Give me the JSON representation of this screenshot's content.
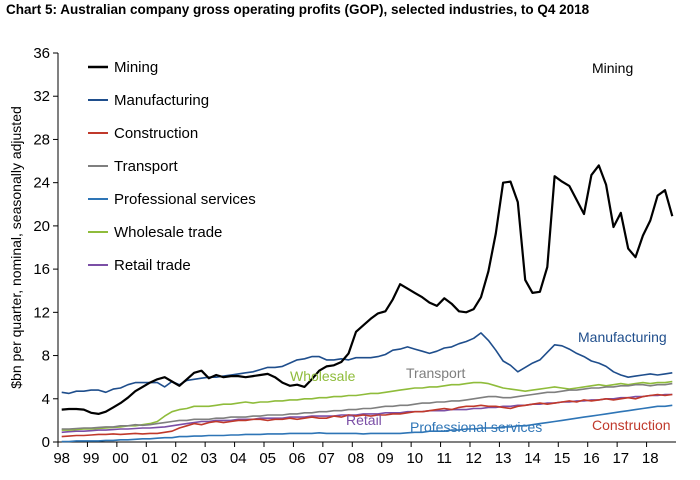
{
  "chart_data": {
    "type": "line",
    "title": "Chart 5: Australian company gross operating profits (GOP), selected industries, to Q4 2018",
    "ylabel": "$bn per quarter, nominal, seasonally adjusted",
    "xlabel": "",
    "ylim": [
      0,
      36
    ],
    "yticks": [
      0,
      4,
      8,
      12,
      16,
      20,
      24,
      28,
      32,
      36
    ],
    "x_start": 1998,
    "quarters": 84,
    "x_ticks": [
      "98",
      "99",
      "00",
      "01",
      "02",
      "03",
      "04",
      "05",
      "06",
      "07",
      "08",
      "09",
      "10",
      "11",
      "12",
      "13",
      "14",
      "15",
      "16",
      "17",
      "18"
    ],
    "series": [
      {
        "name": "Mining",
        "color": "#000000",
        "values": [
          3.0,
          3.05,
          3.05,
          3.0,
          2.7,
          2.6,
          2.8,
          3.2,
          3.6,
          4.1,
          4.7,
          5.1,
          5.5,
          5.8,
          6.0,
          5.6,
          5.2,
          5.8,
          6.4,
          6.6,
          5.9,
          6.2,
          6.0,
          6.1,
          6.1,
          6.0,
          6.1,
          6.2,
          6.3,
          6.0,
          5.5,
          5.2,
          5.3,
          5.1,
          5.8,
          6.6,
          7.0,
          7.1,
          7.4,
          8.2,
          10.2,
          10.8,
          11.4,
          11.9,
          12.1,
          13.2,
          14.6,
          14.2,
          13.8,
          13.4,
          12.9,
          12.6,
          13.3,
          12.8,
          12.1,
          12.0,
          12.3,
          13.4,
          15.8,
          19.3,
          24.0,
          24.1,
          22.2,
          15.0,
          13.8,
          13.9,
          16.2,
          24.6,
          24.1,
          23.7,
          22.4,
          21.1,
          24.7,
          25.6,
          23.8,
          19.9,
          21.2,
          17.9,
          17.1,
          19.1,
          20.5,
          22.8,
          23.3,
          20.9
        ]
      },
      {
        "name": "Manufacturing",
        "color": "#1f4e8c",
        "values": [
          4.6,
          4.5,
          4.7,
          4.7,
          4.8,
          4.8,
          4.6,
          4.9,
          5.0,
          5.3,
          5.5,
          5.5,
          5.5,
          5.5,
          5.1,
          5.6,
          5.3,
          5.7,
          5.8,
          5.9,
          6.0,
          6.0,
          6.1,
          6.2,
          6.3,
          6.4,
          6.5,
          6.7,
          6.9,
          6.9,
          7.0,
          7.3,
          7.6,
          7.7,
          7.9,
          7.9,
          7.6,
          7.6,
          7.7,
          7.6,
          7.8,
          7.8,
          7.8,
          7.9,
          8.1,
          8.5,
          8.6,
          8.8,
          8.6,
          8.4,
          8.2,
          8.4,
          8.7,
          8.8,
          9.1,
          9.3,
          9.6,
          10.1,
          9.4,
          8.5,
          7.5,
          7.1,
          6.5,
          6.9,
          7.3,
          7.6,
          8.3,
          9.0,
          8.9,
          8.6,
          8.2,
          7.9,
          7.5,
          7.3,
          7.0,
          6.5,
          6.2,
          6.0,
          6.1,
          6.2,
          6.3,
          6.2,
          6.3,
          6.4
        ]
      },
      {
        "name": "Construction",
        "color": "#c0392b",
        "values": [
          0.5,
          0.55,
          0.6,
          0.6,
          0.65,
          0.7,
          0.7,
          0.75,
          0.7,
          0.75,
          0.8,
          0.75,
          0.8,
          0.8,
          0.9,
          1.0,
          1.3,
          1.5,
          1.7,
          1.6,
          1.8,
          1.9,
          1.8,
          1.9,
          2.0,
          2.0,
          2.1,
          2.1,
          2.0,
          2.1,
          2.1,
          2.2,
          2.1,
          2.2,
          2.3,
          2.2,
          2.2,
          2.4,
          2.3,
          2.5,
          2.4,
          2.5,
          2.4,
          2.5,
          2.5,
          2.6,
          2.6,
          2.7,
          2.8,
          2.8,
          2.9,
          3.0,
          3.1,
          3.0,
          3.2,
          3.3,
          3.3,
          3.4,
          3.3,
          3.3,
          3.2,
          3.1,
          3.3,
          3.4,
          3.5,
          3.6,
          3.5,
          3.6,
          3.7,
          3.8,
          3.7,
          3.9,
          3.8,
          3.9,
          4.0,
          3.9,
          4.0,
          4.1,
          4.0,
          4.2,
          4.3,
          4.4,
          4.3,
          4.4
        ]
      },
      {
        "name": "Transport",
        "color": "#7f7f7f",
        "values": [
          1.2,
          1.2,
          1.25,
          1.3,
          1.3,
          1.35,
          1.4,
          1.4,
          1.5,
          1.5,
          1.6,
          1.55,
          1.6,
          1.7,
          1.8,
          1.9,
          2.0,
          2.0,
          2.1,
          2.1,
          2.1,
          2.2,
          2.2,
          2.3,
          2.3,
          2.3,
          2.4,
          2.4,
          2.5,
          2.5,
          2.5,
          2.6,
          2.6,
          2.7,
          2.7,
          2.8,
          2.8,
          2.9,
          2.9,
          3.0,
          3.0,
          3.1,
          3.1,
          3.2,
          3.3,
          3.3,
          3.4,
          3.4,
          3.5,
          3.6,
          3.6,
          3.7,
          3.7,
          3.8,
          3.8,
          3.9,
          4.0,
          4.1,
          4.2,
          4.2,
          4.1,
          4.1,
          4.2,
          4.3,
          4.4,
          4.5,
          4.6,
          4.6,
          4.7,
          4.8,
          4.8,
          4.9,
          5.0,
          5.0,
          5.1,
          5.1,
          5.2,
          5.2,
          5.3,
          5.3,
          5.2,
          5.3,
          5.3,
          5.4
        ]
      },
      {
        "name": "Professional services",
        "color": "#2e75b6",
        "values": [
          0.05,
          0.05,
          0.1,
          0.1,
          0.1,
          0.1,
          0.15,
          0.15,
          0.2,
          0.2,
          0.25,
          0.3,
          0.3,
          0.35,
          0.4,
          0.4,
          0.5,
          0.5,
          0.55,
          0.55,
          0.6,
          0.6,
          0.6,
          0.65,
          0.65,
          0.7,
          0.7,
          0.7,
          0.75,
          0.75,
          0.75,
          0.8,
          0.8,
          0.8,
          0.8,
          0.85,
          0.8,
          0.8,
          0.8,
          0.8,
          0.8,
          0.75,
          0.8,
          0.8,
          0.8,
          0.8,
          0.8,
          0.85,
          0.9,
          0.9,
          1.0,
          1.0,
          1.0,
          1.1,
          1.1,
          1.2,
          1.2,
          1.3,
          1.3,
          1.3,
          1.4,
          1.4,
          1.5,
          1.5,
          1.6,
          1.7,
          1.8,
          1.9,
          2.0,
          2.1,
          2.2,
          2.3,
          2.4,
          2.5,
          2.6,
          2.7,
          2.8,
          2.9,
          3.0,
          3.1,
          3.2,
          3.3,
          3.3,
          3.4
        ]
      },
      {
        "name": "Wholesale trade",
        "color": "#8fbc3b",
        "values": [
          1.1,
          1.1,
          1.15,
          1.2,
          1.2,
          1.25,
          1.3,
          1.35,
          1.4,
          1.5,
          1.5,
          1.6,
          1.7,
          1.9,
          2.4,
          2.8,
          3.0,
          3.1,
          3.3,
          3.3,
          3.3,
          3.4,
          3.5,
          3.5,
          3.6,
          3.7,
          3.6,
          3.7,
          3.7,
          3.8,
          3.8,
          3.9,
          3.9,
          4.0,
          4.0,
          4.1,
          4.1,
          4.2,
          4.2,
          4.3,
          4.3,
          4.4,
          4.5,
          4.5,
          4.6,
          4.7,
          4.8,
          4.9,
          5.0,
          5.0,
          5.1,
          5.1,
          5.2,
          5.3,
          5.3,
          5.4,
          5.5,
          5.5,
          5.4,
          5.2,
          5.0,
          4.9,
          4.8,
          4.7,
          4.8,
          4.9,
          5.0,
          5.1,
          5.0,
          4.9,
          5.0,
          5.1,
          5.2,
          5.3,
          5.2,
          5.3,
          5.4,
          5.3,
          5.4,
          5.5,
          5.4,
          5.5,
          5.5,
          5.6
        ]
      },
      {
        "name": "Retail trade",
        "color": "#7b4fa6",
        "values": [
          0.9,
          0.95,
          1.0,
          1.0,
          1.05,
          1.1,
          1.1,
          1.15,
          1.2,
          1.2,
          1.25,
          1.3,
          1.3,
          1.35,
          1.4,
          1.5,
          1.6,
          1.7,
          1.8,
          1.9,
          1.9,
          2.0,
          2.0,
          2.0,
          2.1,
          2.1,
          2.1,
          2.2,
          2.2,
          2.2,
          2.2,
          2.3,
          2.3,
          2.3,
          2.4,
          2.4,
          2.4,
          2.4,
          2.5,
          2.5,
          2.5,
          2.6,
          2.6,
          2.6,
          2.7,
          2.7,
          2.7,
          2.8,
          2.8,
          2.8,
          2.9,
          2.9,
          2.9,
          3.0,
          3.0,
          3.0,
          3.1,
          3.1,
          3.2,
          3.2,
          3.3,
          3.3,
          3.4,
          3.4,
          3.5,
          3.5,
          3.6,
          3.6,
          3.7,
          3.7,
          3.8,
          3.8,
          3.9,
          3.9,
          4.0,
          4.0,
          4.1,
          4.1,
          4.2,
          4.2,
          4.3,
          4.3,
          4.4,
          4.4
        ]
      }
    ],
    "legend_position": "top-left",
    "annotations": [
      {
        "text": "Mining",
        "series": "Mining"
      },
      {
        "text": "Manufacturing",
        "series": "Manufacturing"
      },
      {
        "text": "Wholesale",
        "series": "Wholesale trade"
      },
      {
        "text": "Transport",
        "series": "Transport"
      },
      {
        "text": "Retail",
        "series": "Retail trade"
      },
      {
        "text": "Professional services",
        "series": "Professional services"
      },
      {
        "text": "Construction",
        "series": "Construction"
      }
    ],
    "grid": false
  }
}
